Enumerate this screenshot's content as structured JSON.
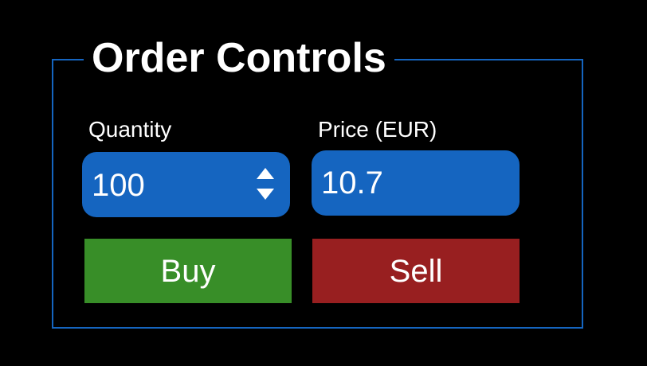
{
  "group": {
    "title": "Order Controls"
  },
  "quantity": {
    "label": "Quantity",
    "value": "100",
    "increment_icon": "triangle-up-icon",
    "decrement_icon": "triangle-down-icon"
  },
  "price": {
    "label": "Price (EUR)",
    "value": "10.7"
  },
  "actions": {
    "buy_label": "Buy",
    "sell_label": "Sell"
  },
  "colors": {
    "background": "#000000",
    "frame_border": "#1565c0",
    "field_background": "#1565c0",
    "buy": "#388e28",
    "sell": "#981f20",
    "text": "#ffffff"
  }
}
